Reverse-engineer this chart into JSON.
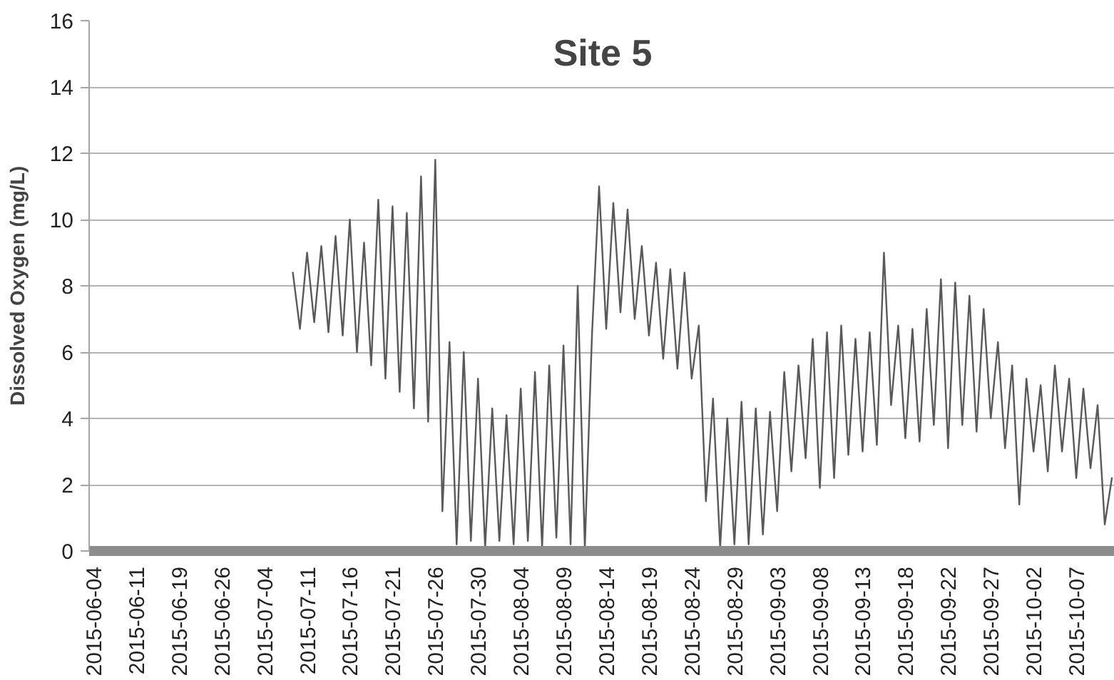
{
  "chart_data": {
    "type": "line",
    "title": "Site 5",
    "ylabel": "Dissolved Oxygen (mg/L)",
    "ylim": [
      0,
      16
    ],
    "yticks": [
      0,
      2,
      4,
      6,
      8,
      10,
      12,
      14,
      16
    ],
    "grid": "y",
    "categories": [
      "2015-06-04",
      null,
      null,
      null,
      null,
      null,
      "2015-06-11",
      null,
      null,
      null,
      null,
      null,
      "2015-06-19",
      null,
      null,
      null,
      null,
      null,
      "2015-06-26",
      null,
      null,
      null,
      null,
      null,
      "2015-07-04",
      null,
      null,
      null,
      null,
      null,
      "2015-07-11",
      null,
      null,
      null,
      null,
      null,
      "2015-07-16",
      null,
      null,
      null,
      null,
      null,
      "2015-07-21",
      null,
      null,
      null,
      null,
      null,
      "2015-07-26",
      null,
      null,
      null,
      null,
      null,
      "2015-07-30",
      null,
      null,
      null,
      null,
      null,
      "2015-08-04",
      null,
      null,
      null,
      null,
      null,
      "2015-08-09",
      null,
      null,
      null,
      null,
      null,
      "2015-08-14",
      null,
      null,
      null,
      null,
      null,
      "2015-08-19",
      null,
      null,
      null,
      null,
      null,
      "2015-08-24",
      null,
      null,
      null,
      null,
      null,
      "2015-08-29",
      null,
      null,
      null,
      null,
      null,
      "2015-09-03",
      null,
      null,
      null,
      null,
      null,
      "2015-09-08",
      null,
      null,
      null,
      null,
      null,
      "2015-09-13",
      null,
      null,
      null,
      null,
      null,
      "2015-09-18",
      null,
      null,
      null,
      null,
      null,
      "2015-09-22",
      null,
      null,
      null,
      null,
      null,
      "2015-09-27",
      null,
      null,
      null,
      null,
      null,
      "2015-10-02",
      null,
      null,
      null,
      null,
      null,
      "2015-10-07",
      null,
      null,
      null,
      null,
      null
    ],
    "series": [
      {
        "color": "#595959",
        "values": [
          null,
          null,
          null,
          null,
          null,
          null,
          null,
          null,
          null,
          null,
          null,
          null,
          null,
          null,
          null,
          null,
          null,
          null,
          null,
          null,
          null,
          null,
          null,
          null,
          null,
          null,
          null,
          null,
          8.4,
          6.7,
          9.0,
          6.9,
          9.2,
          6.6,
          9.5,
          6.5,
          10.0,
          6.0,
          9.3,
          5.6,
          10.6,
          5.2,
          10.4,
          4.8,
          10.2,
          4.3,
          11.3,
          3.9,
          11.8,
          1.2,
          6.3,
          0.2,
          6.0,
          0.3,
          5.2,
          0.1,
          4.3,
          0.3,
          4.1,
          0.2,
          4.9,
          0.3,
          5.4,
          0.1,
          5.6,
          0.4,
          6.2,
          0.2,
          8.0,
          0.1,
          6.5,
          11.0,
          6.7,
          10.5,
          7.2,
          10.3,
          7.0,
          9.2,
          6.5,
          8.7,
          5.8,
          8.5,
          5.5,
          8.4,
          5.2,
          6.8,
          1.5,
          4.6,
          0.1,
          4.0,
          0.2,
          4.5,
          0.2,
          4.3,
          0.5,
          4.2,
          1.2,
          5.4,
          2.4,
          5.6,
          2.8,
          6.4,
          1.9,
          6.6,
          2.2,
          6.8,
          2.9,
          6.4,
          3.0,
          6.6,
          3.2,
          9.0,
          4.4,
          6.8,
          3.4,
          6.7,
          3.3,
          7.3,
          3.8,
          8.2,
          3.1,
          8.1,
          3.8,
          7.7,
          3.6,
          7.3,
          4.0,
          6.3,
          3.1,
          5.6,
          1.4,
          5.2,
          3.0,
          5.0,
          2.4,
          5.6,
          3.0,
          5.2,
          2.2,
          4.9,
          2.5,
          4.4,
          0.8,
          2.2
        ]
      }
    ]
  }
}
